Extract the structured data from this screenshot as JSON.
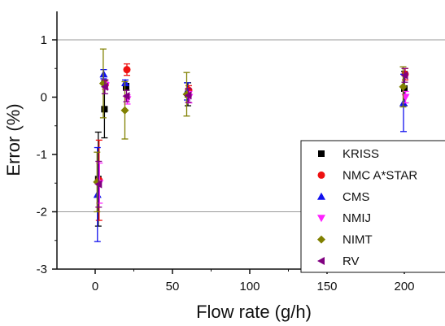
{
  "chart_data": {
    "type": "scatter",
    "xlabel": "Flow rate (g/h)",
    "ylabel": "Error (%)",
    "xlim": [
      -12,
      220
    ],
    "ylim": [
      -3,
      1.5
    ],
    "x_ticks": [
      0,
      50,
      100,
      150,
      200
    ],
    "y_ticks": [
      1,
      0,
      -1,
      -2,
      -3
    ],
    "x_tick_labels": [
      "0",
      "50",
      "100",
      "150",
      "200"
    ],
    "y_tick_labels": [
      "1",
      "0",
      "-1",
      "-2",
      "-3"
    ],
    "gridlines_y": [
      1,
      -2
    ],
    "grid": "horizontal lines at 1 and -2",
    "legend_position": "bottom-right",
    "series": [
      {
        "name": "KRISS",
        "color": "#000000",
        "marker": "square",
        "points": [
          {
            "x": 2,
            "y": -1.43,
            "err": 0.82
          },
          {
            "x": 6,
            "y": -0.21,
            "err": 0.5
          },
          {
            "x": 20,
            "y": 0.18,
            "err": 0.06
          },
          {
            "x": 60,
            "y": 0.05,
            "err": 0.2
          },
          {
            "x": 200,
            "y": 0.15,
            "err": 0.3
          }
        ]
      },
      {
        "name": "NMC A*STAR",
        "color": "#ee1111",
        "marker": "circle",
        "points": [
          {
            "x": 2,
            "y": -1.45,
            "err": 0.7
          },
          {
            "x": 6,
            "y": 0.22,
            "err": 0.08
          },
          {
            "x": 20,
            "y": 0.48,
            "err": 0.1
          },
          {
            "x": 60,
            "y": 0.12,
            "err": 0.08
          },
          {
            "x": 200,
            "y": 0.4,
            "err": 0.1
          }
        ]
      },
      {
        "name": "CMS",
        "color": "#1111ee",
        "marker": "triangle-up",
        "points": [
          {
            "x": 2,
            "y": -1.7,
            "err": 0.82
          },
          {
            "x": 6,
            "y": 0.4,
            "err": 0.08
          },
          {
            "x": 20,
            "y": 0.25,
            "err": 0.05
          },
          {
            "x": 60,
            "y": 0.1,
            "err": 0.15
          },
          {
            "x": 200,
            "y": -0.1,
            "err": 0.5
          }
        ]
      },
      {
        "name": "NMIJ",
        "color": "#ff22ff",
        "marker": "triangle-down",
        "points": [
          {
            "x": 2,
            "y": -1.5,
            "err": 0.35
          },
          {
            "x": 6,
            "y": 0.2,
            "err": 0.06
          },
          {
            "x": 20,
            "y": -0.04,
            "err": 0.08
          },
          {
            "x": 60,
            "y": 0.0,
            "err": 0.1
          },
          {
            "x": 200,
            "y": 0.0,
            "err": 0.1
          }
        ]
      },
      {
        "name": "NIMT",
        "color": "#808000",
        "marker": "diamond",
        "points": [
          {
            "x": 2,
            "y": -1.48,
            "err": 0.52
          },
          {
            "x": 6,
            "y": 0.24,
            "err": 0.6
          },
          {
            "x": 20,
            "y": -0.23,
            "err": 0.5
          },
          {
            "x": 60,
            "y": 0.05,
            "err": 0.38
          },
          {
            "x": 200,
            "y": 0.18,
            "err": 0.35
          }
        ]
      },
      {
        "name": "RV",
        "color": "#800080",
        "marker": "triangle-left",
        "points": [
          {
            "x": 2,
            "y": -1.52,
            "err": 0.4
          },
          {
            "x": 6,
            "y": 0.18,
            "err": 0.12
          },
          {
            "x": 20,
            "y": 0.02,
            "err": 0.1
          },
          {
            "x": 60,
            "y": 0.03,
            "err": 0.12
          },
          {
            "x": 200,
            "y": 0.38,
            "err": 0.12
          }
        ]
      }
    ]
  }
}
